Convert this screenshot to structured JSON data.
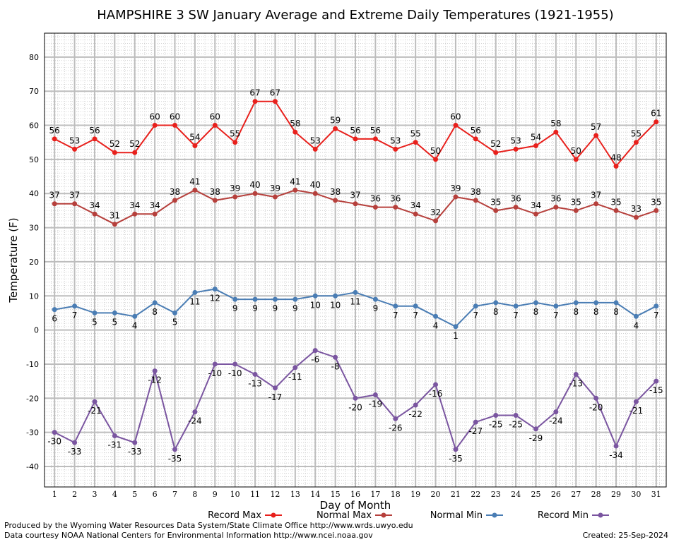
{
  "chart_data": {
    "type": "line",
    "title": "HAMPSHIRE 3 SW January Average and Extreme Daily Temperatures (1921-1955)",
    "xlabel": "Day of Month",
    "ylabel": "Temperature (F)",
    "ylim": [
      -46,
      87
    ],
    "yticks": [
      -40,
      -30,
      -20,
      -10,
      0,
      10,
      20,
      30,
      40,
      50,
      60,
      70,
      80
    ],
    "xlim": [
      0.5,
      31.5
    ],
    "categories": [
      "1",
      "2",
      "3",
      "4",
      "5",
      "6",
      "7",
      "8",
      "9",
      "10",
      "11",
      "12",
      "13",
      "14",
      "15",
      "16",
      "17",
      "18",
      "19",
      "20",
      "21",
      "22",
      "23",
      "24",
      "25",
      "26",
      "27",
      "28",
      "29",
      "30",
      "31"
    ],
    "grid": true,
    "legend_position": "bottom",
    "series": [
      {
        "name": "Record Max",
        "color": "#e8201c",
        "label_pos": "above",
        "values": [
          56,
          53,
          56,
          52,
          52,
          60,
          60,
          54,
          60,
          55,
          67,
          67,
          58,
          53,
          59,
          56,
          56,
          53,
          55,
          50,
          60,
          56,
          52,
          53,
          54,
          58,
          50,
          57,
          48,
          55,
          61
        ]
      },
      {
        "name": "Normal Max",
        "color": "#b6403c",
        "label_pos": "above",
        "values": [
          37,
          37,
          34,
          31,
          34,
          34,
          38,
          41,
          38,
          39,
          40,
          39,
          41,
          40,
          38,
          37,
          36,
          36,
          34,
          32,
          39,
          38,
          35,
          36,
          34,
          36,
          35,
          37,
          35,
          33,
          35
        ]
      },
      {
        "name": "Normal Min",
        "color": "#4a7db4",
        "label_pos": "below",
        "values": [
          6,
          7,
          5,
          5,
          4,
          8,
          5,
          11,
          12,
          9,
          9,
          9,
          9,
          10,
          10,
          11,
          9,
          7,
          7,
          4,
          1,
          7,
          8,
          7,
          8,
          7,
          8,
          8,
          8,
          4,
          7
        ]
      },
      {
        "name": "Record Min",
        "color": "#7a55a0",
        "label_pos": "below",
        "values": [
          -30,
          -33,
          -21,
          -31,
          -33,
          -12,
          -35,
          -24,
          -10,
          -10,
          -13,
          -17,
          -11,
          -6,
          -8,
          -20,
          -19,
          -26,
          -22,
          -16,
          -35,
          -27,
          -25,
          -25,
          -29,
          -24,
          -13,
          -20,
          -34,
          -21,
          -15
        ]
      }
    ]
  },
  "footer": {
    "produced_by": "Produced by the Wyoming Water Resources Data System/State Climate Office http://www.wrds.uwyo.edu",
    "courtesy": "Data courtesy NOAA National Centers for Environmental Information http://www.ncei.noaa.gov",
    "created": "Created: 25-Sep-2024"
  }
}
